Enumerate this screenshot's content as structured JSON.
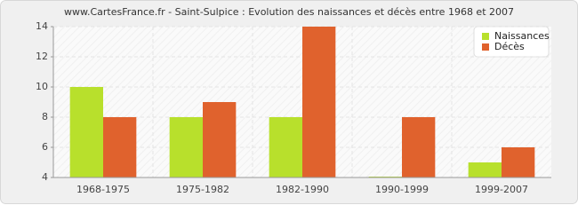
{
  "chart_data": {
    "type": "bar",
    "title": "www.CartesFrance.fr - Saint-Sulpice : Evolution des naissances et décès entre 1968 et 2007",
    "categories": [
      "1968-1975",
      "1975-1982",
      "1982-1990",
      "1990-1999",
      "1999-2007"
    ],
    "series": [
      {
        "name": "Naissances",
        "color": "#b8e02c",
        "values": [
          10,
          8,
          8,
          4,
          5
        ]
      },
      {
        "name": "Décès",
        "color": "#e0622d",
        "values": [
          8,
          9,
          14,
          8,
          6
        ]
      }
    ],
    "ylim": [
      4,
      14
    ],
    "yticks": [
      4,
      6,
      8,
      10,
      12,
      14
    ],
    "grid": true,
    "legend": "top-right"
  }
}
